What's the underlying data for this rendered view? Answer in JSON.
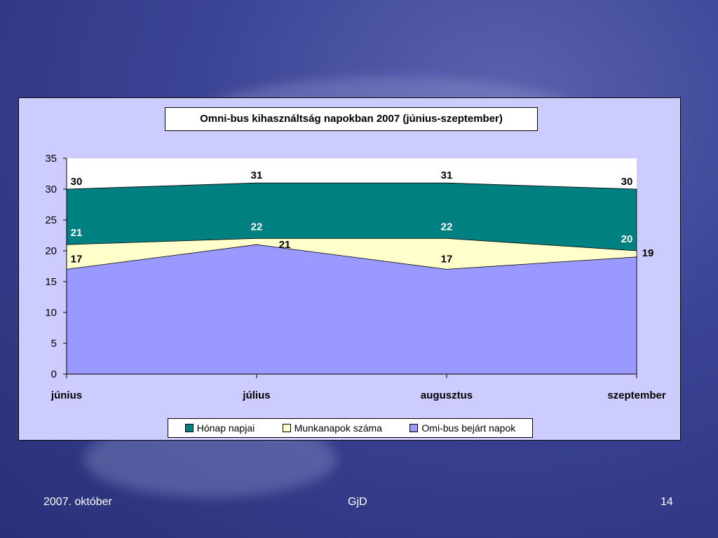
{
  "footer": {
    "date": "2007. október",
    "author": "GjD",
    "page": "14"
  },
  "colors": {
    "honap": "#008080",
    "munkanap": "#ffffcc",
    "bejart": "#9999ff",
    "plot_bg": "#ffffff",
    "frame_bg": "#ccccff"
  },
  "chart_data": {
    "type": "area",
    "title": "Omni-bus kihasználtság napokban 2007 (június-szeptember)",
    "categories": [
      "június",
      "július",
      "augusztus",
      "szeptember"
    ],
    "ylim": [
      0,
      35
    ],
    "yticks": [
      0,
      5,
      10,
      15,
      20,
      25,
      30,
      35
    ],
    "legend_position": "bottom",
    "series": [
      {
        "name": "Hónap napjai",
        "values": [
          30,
          31,
          31,
          30
        ],
        "color": "#008080"
      },
      {
        "name": "Munkanapok száma",
        "values": [
          21,
          22,
          22,
          20
        ],
        "color": "#ffffcc"
      },
      {
        "name": "Omi-bus bejárt napok",
        "values": [
          17,
          21,
          17,
          19
        ],
        "color": "#9999ff"
      }
    ]
  }
}
